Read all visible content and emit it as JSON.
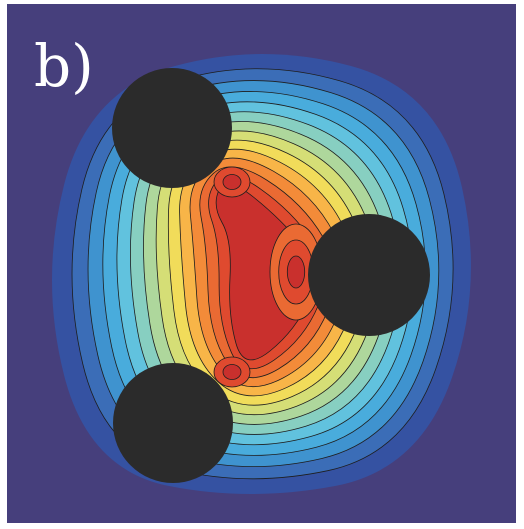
{
  "figure": {
    "panel_label": "b)",
    "colors": {
      "background": "#463f7c",
      "frame": "#ffffff",
      "disc": "#2b2b2b",
      "contour_line": "#1e1e1e",
      "levels": [
        "#3552a2",
        "#3b6db7",
        "#3f93cf",
        "#49acdc",
        "#61c2de",
        "#87cfc1",
        "#aed79c",
        "#d5de76",
        "#f1dc5a",
        "#f8b548",
        "#f38b39",
        "#ea6a33",
        "#df4a2f",
        "#c9302d"
      ]
    },
    "discs": [
      "disc-top-left",
      "disc-right",
      "disc-bottom-left"
    ]
  }
}
